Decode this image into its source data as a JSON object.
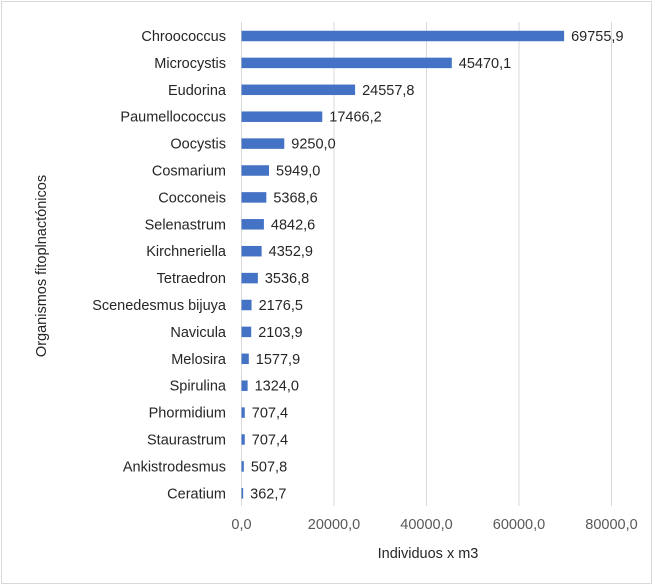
{
  "chart_data": {
    "type": "bar",
    "orientation": "horizontal",
    "categories": [
      "Chroococcus",
      "Microcystis",
      "Eudorina",
      "Paumellococcus",
      "Oocystis",
      "Cosmarium",
      "Cocconeis",
      "Selenastrum",
      "Kirchneriella",
      "Tetraedron",
      "Scenedesmus bijuya",
      "Navicula",
      "Melosira",
      "Spirulina",
      "Phormidium",
      "Staurastrum",
      "Ankistrodesmus",
      "Ceratium"
    ],
    "values": [
      69755.9,
      45470.1,
      24557.8,
      17466.2,
      9250.0,
      5949.0,
      5368.6,
      4842.6,
      4352.9,
      3536.8,
      2176.5,
      2103.9,
      1577.9,
      1324.0,
      707.4,
      707.4,
      507.8,
      362.7
    ],
    "value_labels": [
      "69755,9",
      "45470,1",
      "24557,8",
      "17466,2",
      "9250,0",
      "5949,0",
      "5368,6",
      "4842,6",
      "4352,9",
      "3536,8",
      "2176,5",
      "2103,9",
      "1577,9",
      "1324,0",
      "707,4",
      "707,4",
      "507,8",
      "362,7"
    ],
    "x_ticks": [
      0,
      20000,
      40000,
      60000,
      80000
    ],
    "x_tick_labels": [
      "0,0",
      "20000,0",
      "40000,0",
      "60000,0",
      "80000,0"
    ],
    "xlim": [
      0,
      80000
    ],
    "xlabel": "Individuos x m3",
    "ylabel": "Organismos fitoplnactónicos",
    "title": "",
    "grid": true,
    "bar_color": "#4472c4",
    "grid_color": "#d9d9d9"
  }
}
